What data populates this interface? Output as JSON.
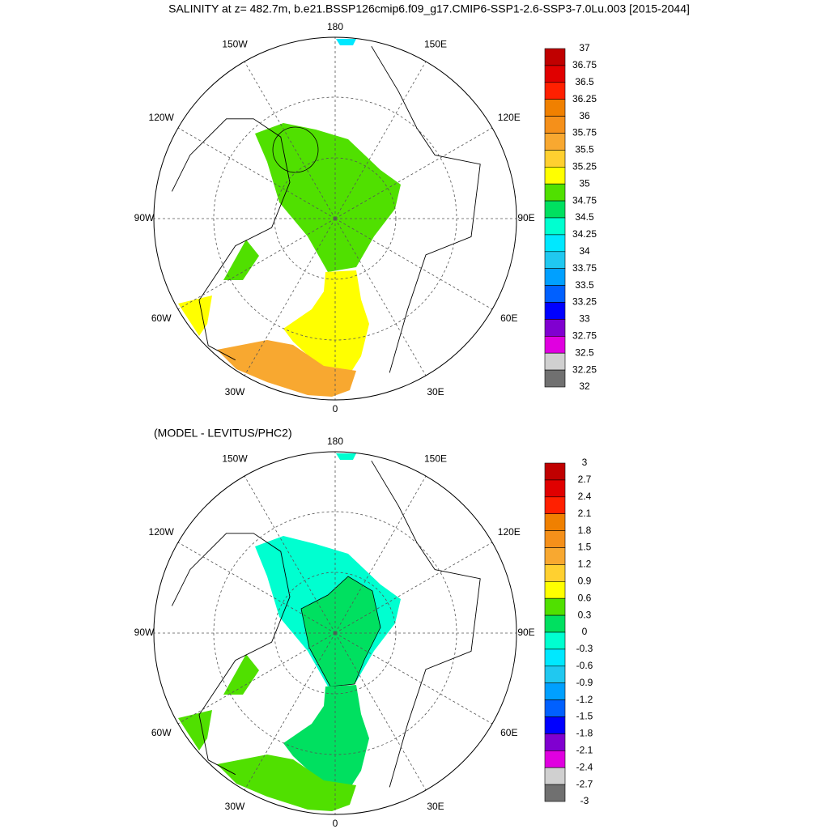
{
  "title": "SALINITY at z= 482.7m, b.e21.BSSP126cmip6.f09_g17.CMIP6-SSP1-2.6-SSP3-7.0Lu.003 [2015-2044]",
  "panels": [
    {
      "longitude_labels": [
        "180",
        "150E",
        "120E",
        "90E",
        "60E",
        "30E",
        "0",
        "30W",
        "60W",
        "90W",
        "120W",
        "150W"
      ],
      "colorbar": {
        "labels": [
          "37",
          "36.75",
          "36.5",
          "36.25",
          "36",
          "35.75",
          "35.5",
          "35.25",
          "35",
          "34.75",
          "34.5",
          "34.25",
          "34",
          "33.75",
          "33.5",
          "33.25",
          "33",
          "32.75",
          "32.5",
          "32.25",
          "32"
        ],
        "colors": [
          "#c00000",
          "#e00000",
          "#ff2000",
          "#f08000",
          "#f5901a",
          "#f8a830",
          "#ffd030",
          "#ffff00",
          "#50e000",
          "#00e060",
          "#00ffd0",
          "#00e8ff",
          "#20c8f0",
          "#00a0ff",
          "#0060ff",
          "#0000ff",
          "#8000d0",
          "#e000e0",
          "#d0d0d0",
          "#707070"
        ]
      }
    },
    {
      "subtitle": "(MODEL - LEVITUS/PHC2)",
      "longitude_labels": [
        "180",
        "150E",
        "120E",
        "90E",
        "60E",
        "30E",
        "0",
        "30W",
        "60W",
        "90W",
        "120W",
        "150W"
      ],
      "colorbar": {
        "labels": [
          "3",
          "2.7",
          "2.4",
          "2.1",
          "1.8",
          "1.5",
          "1.2",
          "0.9",
          "0.6",
          "0.3",
          "0",
          "-0.3",
          "-0.6",
          "-0.9",
          "-1.2",
          "-1.5",
          "-1.8",
          "-2.1",
          "-2.4",
          "-2.7",
          "-3"
        ],
        "colors": [
          "#c00000",
          "#e00000",
          "#ff2000",
          "#f08000",
          "#f5901a",
          "#f8a830",
          "#ffd030",
          "#ffff00",
          "#50e000",
          "#00e060",
          "#00ffd0",
          "#00e8ff",
          "#20c8f0",
          "#00a0ff",
          "#0060ff",
          "#0000ff",
          "#8000d0",
          "#e000e0",
          "#d0d0d0",
          "#707070"
        ]
      }
    }
  ]
}
